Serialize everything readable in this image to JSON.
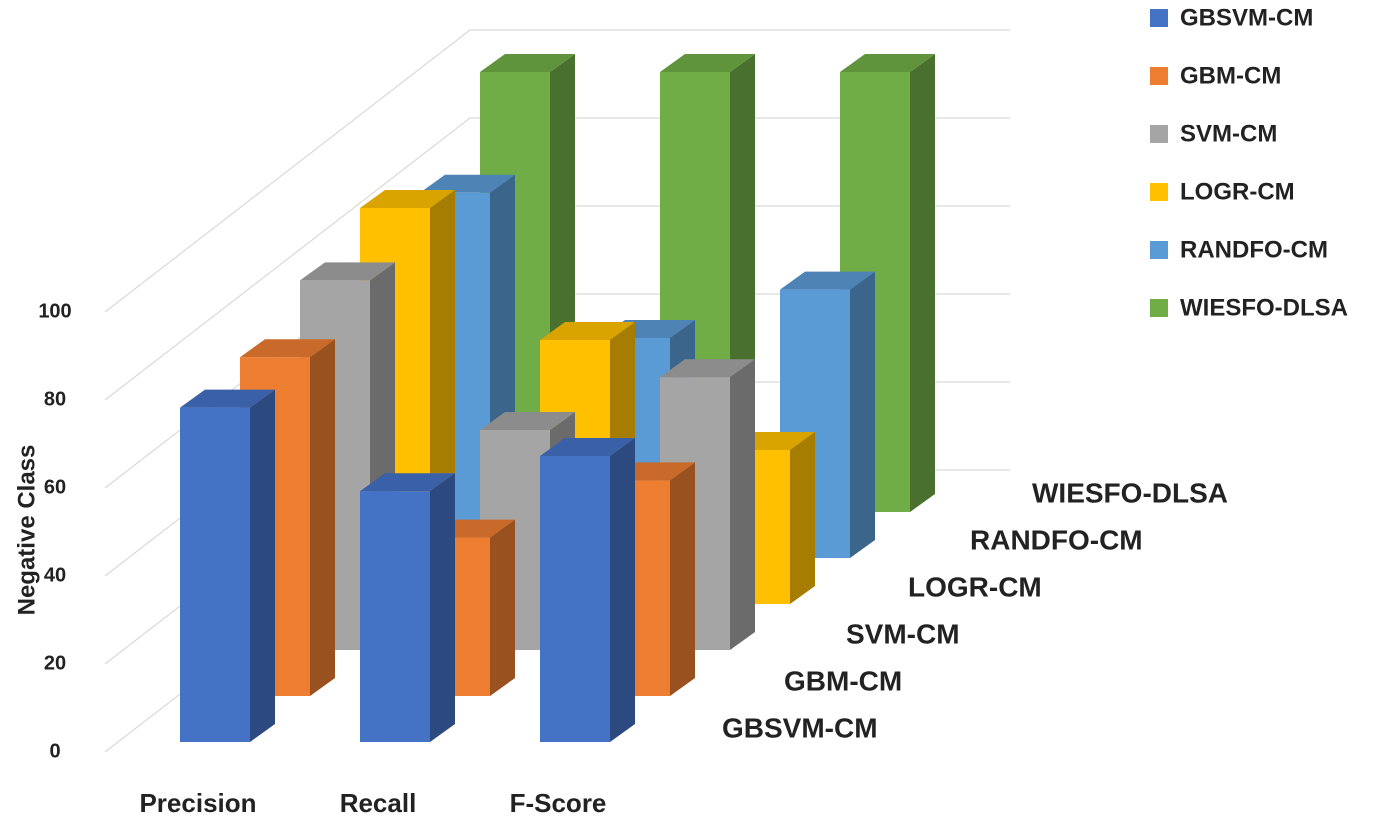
{
  "chart_data": {
    "type": "bar3d",
    "y_label": "Negative Class",
    "categories": [
      "Precision",
      "Recall",
      "F-Score"
    ],
    "series": [
      {
        "name": "GBSVM-CM",
        "color": "#4472c4",
        "values": [
          76,
          57,
          65
        ]
      },
      {
        "name": "GBM-CM",
        "color": "#ed7d31",
        "values": [
          77,
          36,
          49
        ]
      },
      {
        "name": "SVM-CM",
        "color": "#a5a5a5",
        "values": [
          84,
          50,
          62
        ]
      },
      {
        "name": "LOGR-CM",
        "color": "#ffc000",
        "values": [
          90,
          60,
          35
        ]
      },
      {
        "name": "RANDFO-CM",
        "color": "#5b9bd5",
        "values": [
          83,
          50,
          61
        ]
      },
      {
        "name": "WIESFO-DLSA",
        "color": "#70ad47",
        "values": [
          100,
          100,
          100
        ]
      }
    ],
    "ylim": [
      0,
      100
    ],
    "yticks": [
      0,
      20,
      40,
      60,
      80,
      100
    ],
    "grid": true,
    "legend": "right"
  }
}
